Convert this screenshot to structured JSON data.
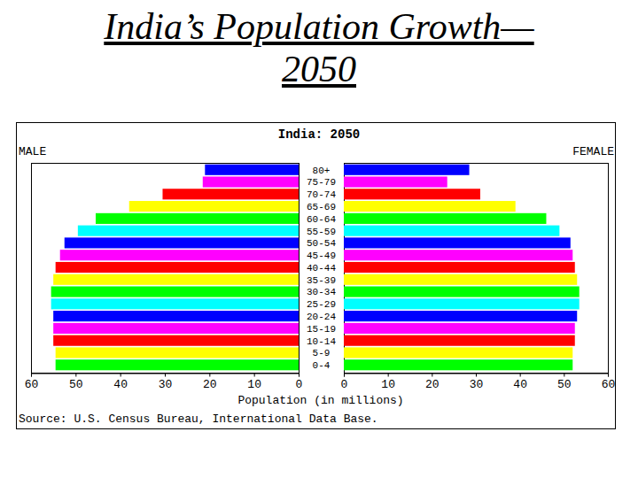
{
  "slide": {
    "title": "India’s Population Growth—2050"
  },
  "chart_data": {
    "type": "bar",
    "orientation": "horizontal",
    "title": "India: 2050",
    "categories": [
      "0-4",
      "5-9",
      "10-14",
      "15-19",
      "20-24",
      "25-29",
      "30-34",
      "35-39",
      "40-44",
      "45-49",
      "50-54",
      "55-59",
      "60-64",
      "65-69",
      "70-74",
      "75-79",
      "80+"
    ],
    "series": [
      {
        "name": "MALE",
        "values": [
          54.5,
          54.5,
          55,
          55,
          55,
          55.5,
          55.5,
          55,
          54.5,
          53.5,
          52.5,
          49.5,
          45.5,
          38,
          30.5,
          21.5,
          21
        ]
      },
      {
        "name": "FEMALE",
        "values": [
          52,
          52,
          52.5,
          52.5,
          53,
          53.5,
          53.5,
          53,
          52.5,
          52,
          51.5,
          49,
          46,
          39,
          31,
          23.5,
          28.5
        ]
      }
    ],
    "colors": [
      "#00ff00",
      "#ffff00",
      "#ff0000",
      "#ff00ff",
      "#0000ff",
      "#00ffff",
      "#00ff00",
      "#ffff00",
      "#ff0000",
      "#ff00ff",
      "#0000ff",
      "#00ffff",
      "#00ff00",
      "#ffff00",
      "#ff0000",
      "#ff00ff",
      "#0000ff"
    ],
    "xlabel": "Population (in millions)",
    "xlim": [
      0,
      60
    ],
    "xticks": [
      0,
      10,
      20,
      30,
      40,
      50,
      60
    ],
    "annotations": [
      "Source: U.S. Census Bureau, International Data Base."
    ]
  }
}
